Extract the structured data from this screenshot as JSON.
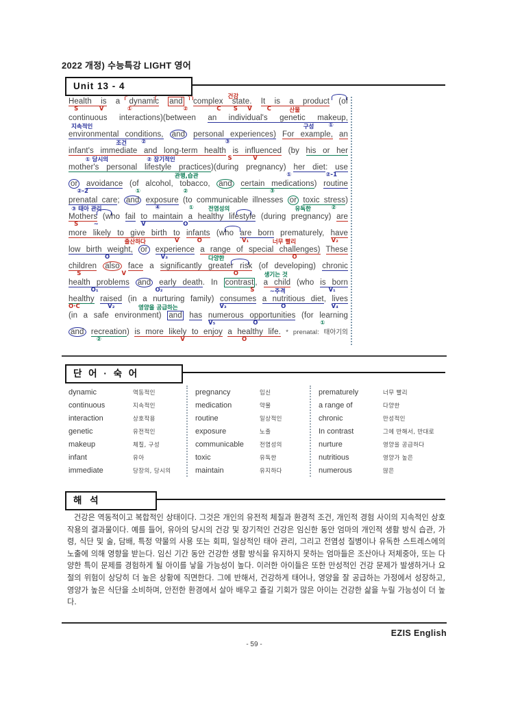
{
  "header": {
    "title": "2022 개정) 수능특강 LIGHT 영어"
  },
  "unit": {
    "label": "Unit 13 - 4"
  },
  "colors": {
    "annotation_red": "#c22a1e",
    "annotation_blue": "#27309b",
    "annotation_green": "#0c7b55",
    "ink": "#3a3a3a"
  },
  "passage": {
    "lines": [
      {
        "segs": [
          {
            "t": "Health is",
            "c": "u-red"
          },
          {
            "t": " a "
          },
          {
            "t": "dynamic",
            "c": "u-red"
          },
          {
            "t": " "
          },
          {
            "t": "and",
            "c": "box-red"
          },
          {
            "t": " "
          },
          {
            "t": "complex state.",
            "c": "u-red"
          },
          {
            "t": " "
          },
          {
            "t": "It is a product",
            "c": "u-red"
          },
          {
            "t": " (of"
          }
        ],
        "anns": [
          {
            "t": "S",
            "c": "r",
            "x": 2
          },
          {
            "t": "V",
            "c": "r",
            "x": 11
          },
          {
            "t": "①",
            "c": "r",
            "x": 21
          },
          {
            "t": "②",
            "c": "r",
            "x": 41
          },
          {
            "t": "C",
            "c": "r",
            "x": 53
          },
          {
            "t": "S",
            "c": "r",
            "x": 59
          },
          {
            "t": "V",
            "c": "r",
            "x": 64
          },
          {
            "t": "C",
            "c": "r",
            "x": 71
          },
          {
            "t": "산물",
            "c": "r",
            "x": 79
          },
          {
            "t": "건강",
            "c": "r",
            "x": 57,
            "above": true
          }
        ],
        "arcs": [
          {
            "c": "r",
            "x": 20,
            "w": 24
          },
          {
            "c": "r",
            "x": 31,
            "w": 12
          },
          {
            "c": "b",
            "x": 94,
            "w": 5
          }
        ]
      },
      {
        "segs": [
          {
            "t": "continuous interactions)(between "
          },
          {
            "t": "an individual's genetic makeup,",
            "c": "u-blue"
          }
        ],
        "anns": [
          {
            "t": "지속적인",
            "c": "b",
            "x": 1
          },
          {
            "t": "구성",
            "c": "b",
            "x": 84
          },
          {
            "t": "①",
            "c": "b",
            "x": 93
          }
        ]
      },
      {
        "segs": [
          {
            "t": "environmental conditions,",
            "c": "u-blue"
          },
          {
            "t": " "
          },
          {
            "t": "and",
            "c": "circ-blue"
          },
          {
            "t": " "
          },
          {
            "t": "personal experiences)",
            "c": "u-blue"
          },
          {
            "t": " "
          },
          {
            "t": "For example,",
            "c": "u-red"
          },
          {
            "t": " "
          },
          {
            "t": "an",
            "c": "u-red"
          }
        ],
        "anns": [
          {
            "t": "조건",
            "c": "b",
            "x": 17
          },
          {
            "t": "②",
            "c": "b",
            "x": 26
          },
          {
            "t": "③",
            "c": "b",
            "x": 56
          }
        ]
      },
      {
        "segs": [
          {
            "t": "infant's immediate and long-term health",
            "c": "u-red"
          },
          {
            "t": " "
          },
          {
            "t": "is influenced",
            "c": "u-red"
          },
          {
            "t": " (by "
          },
          {
            "t": "his or her",
            "c": "u-green"
          }
        ],
        "anns": [
          {
            "t": "① 당시의",
            "c": "b",
            "x": 6
          },
          {
            "t": "② 장기적인",
            "c": "b",
            "x": 28
          },
          {
            "t": "S",
            "c": "r",
            "x": 57
          },
          {
            "t": "V",
            "c": "r",
            "x": 66
          }
        ]
      },
      {
        "segs": [
          {
            "t": "mother's personal lifestyle practices",
            "c": "u-green"
          },
          {
            "t": ")(during pregnancy) "
          },
          {
            "t": "her diet",
            "c": "u-blue"
          },
          {
            "t": ": "
          },
          {
            "t": "use",
            "c": "u-blue"
          }
        ],
        "anns": [
          {
            "t": "관행,습관",
            "c": "g",
            "x": 38
          },
          {
            "t": "①",
            "c": "b",
            "x": 78
          },
          {
            "t": "②-1",
            "c": "b",
            "x": 92
          }
        ]
      },
      {
        "segs": [
          {
            "t": "or",
            "c": "circ-blue"
          },
          {
            "t": " "
          },
          {
            "t": "avoidance",
            "c": "u-blue"
          },
          {
            "t": " (of alcohol, tobacco, "
          },
          {
            "t": "and",
            "c": "circ-green"
          },
          {
            "t": " "
          },
          {
            "t": "certain medications",
            "c": "u-green"
          },
          {
            "t": ") "
          },
          {
            "t": "routine",
            "c": "u-blue"
          }
        ],
        "anns": [
          {
            "t": "②-2",
            "c": "b",
            "x": 3
          },
          {
            "t": "①",
            "c": "g",
            "x": 24
          },
          {
            "t": "②",
            "c": "g",
            "x": 41
          },
          {
            "t": "③",
            "c": "g",
            "x": 72
          }
        ]
      },
      {
        "segs": [
          {
            "t": "prenatal care",
            "c": "u-blue"
          },
          {
            "t": "; "
          },
          {
            "t": "and",
            "c": "circ-blue"
          },
          {
            "t": " "
          },
          {
            "t": "exposure",
            "c": "u-blue"
          },
          {
            "t": " (to communicable illnesses "
          },
          {
            "t": "or",
            "c": "circ-green"
          },
          {
            "t": " "
          },
          {
            "t": "toxic stress",
            "c": "u-green"
          },
          {
            "t": ")"
          }
        ],
        "anns": [
          {
            "t": "③ 태아 관리",
            "c": "b",
            "x": 1
          },
          {
            "t": "④",
            "c": "b",
            "x": 31
          },
          {
            "t": "①",
            "c": "g",
            "x": 43
          },
          {
            "t": "전염성의",
            "c": "g",
            "x": 50
          },
          {
            "t": "유독한",
            "c": "g",
            "x": 81
          },
          {
            "t": "②",
            "c": "g",
            "x": 94
          }
        ]
      },
      {
        "segs": [
          {
            "t": "Mothers",
            "c": "u-red"
          },
          {
            "t": " (who "
          },
          {
            "t": "fail",
            "c": "u-blue"
          },
          {
            "t": " "
          },
          {
            "t": "to maintain",
            "c": "u-blue"
          },
          {
            "t": " "
          },
          {
            "t": "a healthy lifestyle",
            "c": "u-blue"
          },
          {
            "t": " (during pregnancy) "
          },
          {
            "t": "are",
            "c": "u-red"
          }
        ],
        "anns": [
          {
            "t": "S",
            "c": "r",
            "x": 2
          },
          {
            "t": "~",
            "c": "b",
            "x": 9
          },
          {
            "t": "V",
            "c": "b",
            "x": 26
          },
          {
            "t": "O",
            "c": "b",
            "x": 41
          }
        ],
        "arcs": [
          {
            "c": "b",
            "x": 10,
            "w": 5
          },
          {
            "c": "b",
            "x": 60,
            "w": 5
          }
        ]
      },
      {
        "segs": [
          {
            "t": "more likely to give birth to",
            "c": "u-red"
          },
          {
            "t": " "
          },
          {
            "t": "infants",
            "c": "u-red"
          },
          {
            "t": " (who "
          },
          {
            "t": "are born",
            "c": "u-blue"
          },
          {
            "t": " prematurely, "
          },
          {
            "t": "have",
            "c": "u-red"
          }
        ],
        "anns": [
          {
            "t": "출산하다",
            "c": "r",
            "x": 20
          },
          {
            "t": "V",
            "c": "r",
            "x": 38
          },
          {
            "t": "O",
            "c": "r",
            "x": 46
          },
          {
            "t": "V₁",
            "c": "r",
            "x": 62
          },
          {
            "t": "너무 빨리",
            "c": "r",
            "x": 73
          },
          {
            "t": "V₂",
            "c": "r",
            "x": 94
          }
        ],
        "arcs": [
          {
            "c": "b",
            "x": 56,
            "w": 5
          }
        ]
      },
      {
        "segs": [
          {
            "t": "low birth weight,",
            "c": "u-blue"
          },
          {
            "t": " "
          },
          {
            "t": "or",
            "c": "circ-blue"
          },
          {
            "t": " "
          },
          {
            "t": "experience",
            "c": "u-blue"
          },
          {
            "t": " "
          },
          {
            "t": "a range of special challenges)",
            "c": "u-red"
          },
          {
            "t": " "
          },
          {
            "t": "These",
            "c": "u-red"
          }
        ],
        "anns": [
          {
            "t": "O",
            "c": "b",
            "x": 13
          },
          {
            "t": "V₃",
            "c": "b",
            "x": 33
          },
          {
            "t": "다양한",
            "c": "g",
            "x": 50
          },
          {
            "t": "O",
            "c": "r",
            "x": 80
          }
        ]
      },
      {
        "segs": [
          {
            "t": "children",
            "c": "u-red"
          },
          {
            "t": " "
          },
          {
            "t": "also",
            "c": "circ-red"
          },
          {
            "t": " "
          },
          {
            "t": "face",
            "c": "u-red"
          },
          {
            "t": " a "
          },
          {
            "t": "significantly greater risk",
            "c": "u-red"
          },
          {
            "t": " (of developing) "
          },
          {
            "t": "chronic",
            "c": "u-blue"
          }
        ],
        "anns": [
          {
            "t": "S",
            "c": "r",
            "x": 3
          },
          {
            "t": "V",
            "c": "r",
            "x": 19
          },
          {
            "t": "O",
            "c": "r",
            "x": 59
          },
          {
            "t": "생기는 것",
            "c": "g",
            "x": 70
          }
        ],
        "arcs": [
          {
            "c": "b",
            "x": 58,
            "w": 6
          }
        ]
      },
      {
        "segs": [
          {
            "t": "health problems",
            "c": "u-blue"
          },
          {
            "t": " "
          },
          {
            "t": "and",
            "c": "circ-blue"
          },
          {
            "t": " "
          },
          {
            "t": "early death",
            "c": "u-blue"
          },
          {
            "t": ". In "
          },
          {
            "t": "contrast",
            "c": "box-green"
          },
          {
            "t": ", "
          },
          {
            "t": "a child",
            "c": "u-red"
          },
          {
            "t": " (who "
          },
          {
            "t": "is born",
            "c": "u-blue"
          }
        ],
        "anns": [
          {
            "t": "O₁",
            "c": "b",
            "x": 8
          },
          {
            "t": "O₂",
            "c": "b",
            "x": 31
          },
          {
            "t": "S",
            "c": "r",
            "x": 65
          },
          {
            "t": "~주격",
            "c": "b",
            "x": 72
          },
          {
            "t": "V₁",
            "c": "b",
            "x": 93
          }
        ]
      },
      {
        "segs": [
          {
            "t": "healthy",
            "c": "u-green"
          },
          {
            "t": " "
          },
          {
            "t": "raised",
            "c": "u-blue"
          },
          {
            "t": " (in a nurturing family) "
          },
          {
            "t": "consumes",
            "c": "u-blue"
          },
          {
            "t": " "
          },
          {
            "t": "a nutritious diet",
            "c": "u-blue"
          },
          {
            "t": ", "
          },
          {
            "t": "lives",
            "c": "u-blue"
          }
        ],
        "anns": [
          {
            "t": "O·C",
            "c": "r",
            "x": 0
          },
          {
            "t": "V₂",
            "c": "b",
            "x": 14
          },
          {
            "t": "영양을 공급하는",
            "c": "g",
            "x": 25
          },
          {
            "t": "V₃",
            "c": "b",
            "x": 54
          },
          {
            "t": "O",
            "c": "b",
            "x": 76
          },
          {
            "t": "V₄",
            "c": "b",
            "x": 94
          }
        ]
      },
      {
        "segs": [
          {
            "t": "(in a safe environment) "
          },
          {
            "t": "and",
            "c": "box-blue"
          },
          {
            "t": " "
          },
          {
            "t": "has",
            "c": "u-blue"
          },
          {
            "t": " "
          },
          {
            "t": "numerous opportunities",
            "c": "u-blue"
          },
          {
            "t": " (for learning"
          }
        ],
        "anns": [
          {
            "t": "V₅",
            "c": "b",
            "x": 50
          },
          {
            "t": "O",
            "c": "b",
            "x": 66
          },
          {
            "t": "①",
            "c": "g",
            "x": 90
          }
        ]
      },
      {
        "segs": [
          {
            "t": "and",
            "c": "circ-blue"
          },
          {
            "t": " "
          },
          {
            "t": "recreation",
            "c": "u-green"
          },
          {
            "t": ") "
          },
          {
            "t": "is more likely to enjoy",
            "c": "u-red"
          },
          {
            "t": " "
          },
          {
            "t": "a healthy life.",
            "c": "u-red"
          },
          {
            "t": " "
          },
          {
            "t": "* prenatal: 태아기의",
            "c": "fnote"
          }
        ],
        "anns": [
          {
            "t": "②",
            "c": "g",
            "x": 10
          },
          {
            "t": "V",
            "c": "r",
            "x": 40
          },
          {
            "t": "O",
            "c": "r",
            "x": 62
          }
        ]
      }
    ]
  },
  "vocab": {
    "heading": "단 어 · 숙 어",
    "columns": [
      [
        {
          "w": "dynamic",
          "m": "역동적인"
        },
        {
          "w": "continuous",
          "m": "지속적인"
        },
        {
          "w": "interaction",
          "m": "상호작용"
        },
        {
          "w": "genetic",
          "m": "유전적인"
        },
        {
          "w": "makeup",
          "m": "체질, 구성"
        },
        {
          "w": "infant",
          "m": "유아"
        },
        {
          "w": "immediate",
          "m": "당장의, 당시의"
        }
      ],
      [
        {
          "w": "pregnancy",
          "m": "임신"
        },
        {
          "w": "medication",
          "m": "약물"
        },
        {
          "w": "routine",
          "m": "일상적인"
        },
        {
          "w": "exposure",
          "m": "노출"
        },
        {
          "w": "communicable",
          "m": "전염성의"
        },
        {
          "w": "toxic",
          "m": "유독한"
        },
        {
          "w": "maintain",
          "m": "유지하다"
        }
      ],
      [
        {
          "w": "prematurely",
          "m": "너무 빨리"
        },
        {
          "w": "a range of",
          "m": "다양한"
        },
        {
          "w": "chronic",
          "m": "만성적인"
        },
        {
          "w": "In contrast",
          "m": "그에 반해서, 반대로"
        },
        {
          "w": "nurture",
          "m": "영양을 공급하다"
        },
        {
          "w": "nutritious",
          "m": "영양가 높은"
        },
        {
          "w": "numerous",
          "m": "많은"
        }
      ]
    ]
  },
  "translation": {
    "heading": "해 석",
    "text": "건강은 역동적이고 복합적인 상태이다. 그것은 개인의 유전적 체질과 환경적 조건, 개인적 경험 사이의 지속적인 상호 작용의 결과물이다. 예를 들어, 유아의 당시의 건강 및 장기적인 건강은 임신한 동안 엄마의 개인적 생활 방식 습관, 가령, 식단 및 술, 담배, 특정 약물의 사용 또는 회피, 일상적인 태아 관리, 그리고 전염성 질병이나 유독한 스트레스에의 노출에 의해 영향을 받는다. 임신 기간 동안 건강한 생활 방식을 유지하지 못하는 엄마들은 조산아나 저체중아, 또는 다양한 특이 문제를 경험하게 될 아이를 낳을 가능성이 높다. 이러한 아이들은 또한 만성적인 건강 문제가 발생하거나 요절의 위험이 상당히 더 높은 상황에 직면한다. 그에 반해서, 건강하게 태어나, 영양을 잘 공급하는 가정에서 성장하고, 영양가 높은 식단을 소비하며, 안전한 환경에서 살아 배우고 즐길 기회가 많은 아이는 건강한 삶을 누릴 가능성이 더 높다."
  },
  "footer": {
    "brand": "EZIS English",
    "page": "- 59 -"
  }
}
